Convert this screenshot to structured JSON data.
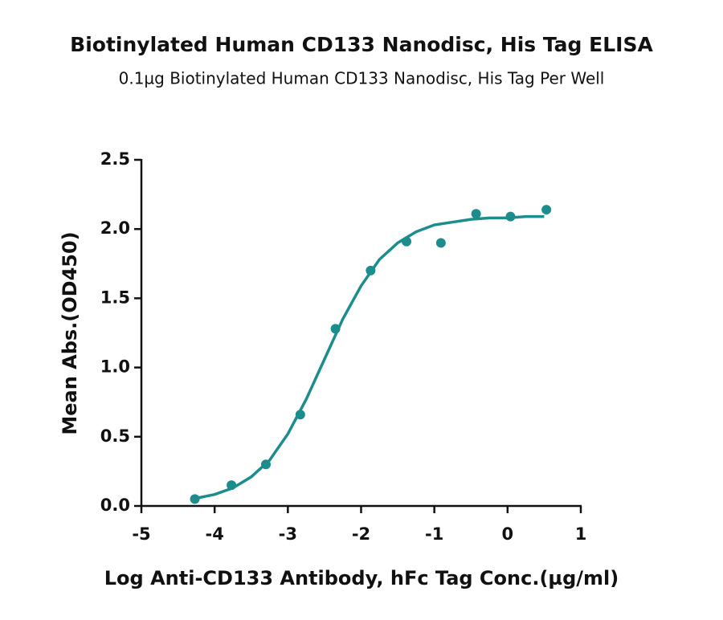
{
  "chart_data": {
    "type": "scatter",
    "title": "Biotinylated Human CD133 Nanodisc, His Tag ELISA",
    "subtitle": "0.1µg Biotinylated Human CD133 Nanodisc, His Tag Per Well",
    "xlabel": "Log Anti-CD133 Antibody, hFc Tag Conc.(µg/ml)",
    "ylabel": "Mean Abs.(OD450)",
    "color": "#1c8c8c",
    "x": [
      -4.27,
      -3.77,
      -3.3,
      -2.83,
      -2.35,
      -1.87,
      -1.38,
      -0.91,
      -0.43,
      0.04,
      0.53
    ],
    "values": [
      0.05,
      0.15,
      0.3,
      0.66,
      1.28,
      1.7,
      1.91,
      1.9,
      2.11,
      2.09,
      2.14
    ],
    "fit": {
      "x": [
        -4.25,
        -4.0,
        -3.75,
        -3.5,
        -3.25,
        -3.0,
        -2.75,
        -2.5,
        -2.25,
        -2.0,
        -1.75,
        -1.5,
        -1.25,
        -1.0,
        -0.75,
        -0.5,
        -0.25,
        0.0,
        0.25,
        0.5
      ],
      "values": [
        0.056,
        0.083,
        0.13,
        0.21,
        0.33,
        0.52,
        0.77,
        1.06,
        1.35,
        1.59,
        1.78,
        1.9,
        1.98,
        2.03,
        2.05,
        2.07,
        2.08,
        2.08,
        2.09,
        2.09
      ]
    },
    "xlim": [
      -5,
      1
    ],
    "ylim": [
      0,
      2.5
    ],
    "xticks": [
      -5,
      -4,
      -3,
      -2,
      -1,
      0,
      1
    ],
    "yticks": [
      {
        "value": 0,
        "label": "0.0"
      },
      0.5,
      {
        "value": 1,
        "label": "1.0"
      },
      1.5,
      {
        "value": 2,
        "label": "2.0"
      },
      2.5
    ]
  }
}
